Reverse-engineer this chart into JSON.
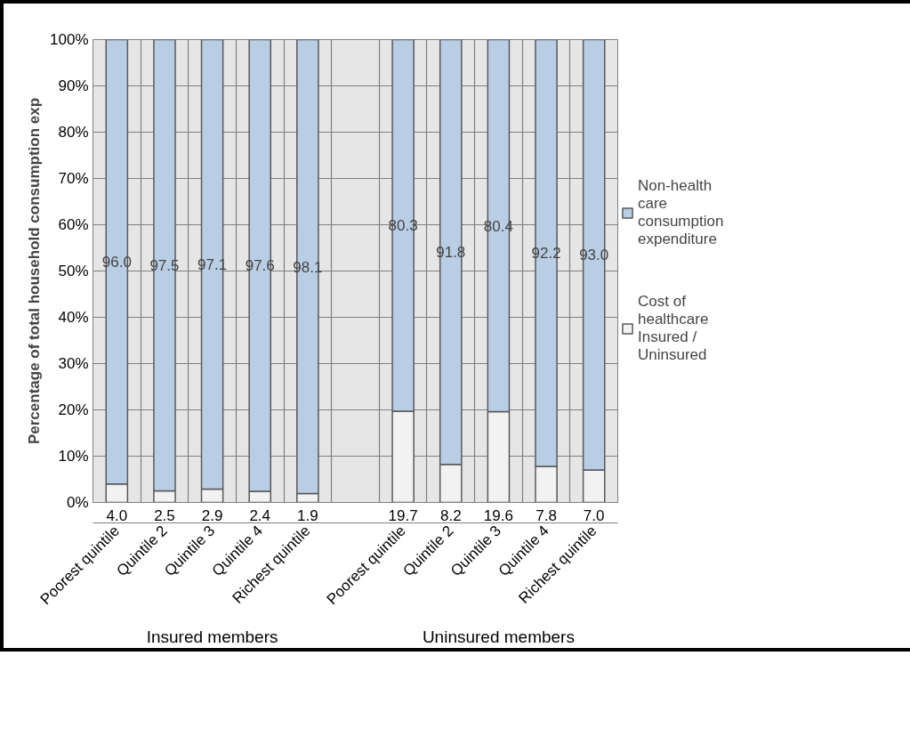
{
  "chart_data": {
    "type": "bar",
    "stacked": true,
    "ylabel": "Percentage of total household consumption exp",
    "categories": [
      "Poorest quintile",
      "Quintile 2",
      "Quintile 3",
      "Quintile 4",
      "Richest quintile",
      null,
      "Poorest quintile",
      "Quintile 2",
      "Quintile 3",
      "Quintile 4",
      "Richest quintile"
    ],
    "series": [
      {
        "name": "Cost of healthcare Insured / Uninsured",
        "color": "#f2f2f2",
        "values": [
          4.0,
          2.5,
          2.9,
          2.4,
          1.9,
          null,
          19.7,
          8.2,
          19.6,
          7.8,
          7.0
        ],
        "value_labels": [
          "4.0",
          "2.5",
          "2.9",
          "2.4",
          "1.9",
          null,
          "19.7",
          "8.2",
          "19.6",
          "7.8",
          "7.0"
        ]
      },
      {
        "name": "Non-health care consumption expenditure",
        "color": "#b9cde5",
        "values": [
          96.0,
          97.5,
          97.1,
          97.6,
          98.1,
          null,
          80.3,
          91.8,
          80.4,
          92.2,
          93.0
        ],
        "value_labels": [
          "96.0",
          "97.5",
          "97.1",
          "97.6",
          "98.1",
          null,
          "80.3",
          "91.8",
          "80.4",
          "92.2",
          "93.0"
        ]
      }
    ],
    "ylim": [
      0,
      100
    ],
    "yticks": [
      {
        "value": 0,
        "label": "0%"
      },
      {
        "value": 10,
        "label": "10%"
      },
      {
        "value": 20,
        "label": "20%"
      },
      {
        "value": 30,
        "label": "30%"
      },
      {
        "value": 40,
        "label": "40%"
      },
      {
        "value": 50,
        "label": "50%"
      },
      {
        "value": 60,
        "label": "60%"
      },
      {
        "value": 70,
        "label": "70%"
      },
      {
        "value": 80,
        "label": "80%"
      },
      {
        "value": 90,
        "label": "90%"
      },
      {
        "value": 100,
        "label": "100%"
      }
    ],
    "grid": true,
    "legend": "right",
    "annotations": [
      "Insured members",
      "Uninsured members"
    ]
  }
}
